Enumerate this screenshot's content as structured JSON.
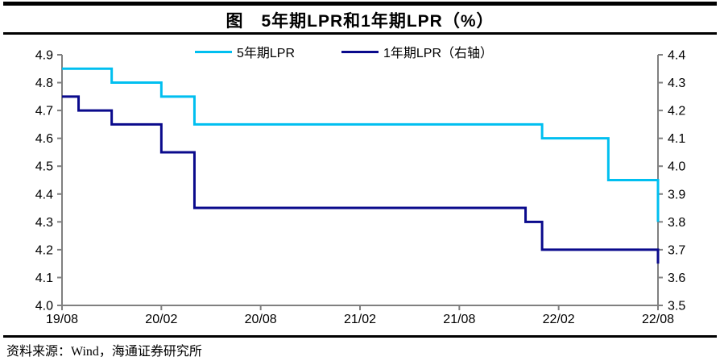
{
  "page": {
    "title": "图　5年期LPR和1年期LPR（%）"
  },
  "legend": {
    "items": [
      {
        "label": "5年期LPR",
        "color": "#00BFF0"
      },
      {
        "label": "1年期LPR（右轴）",
        "color": "#0A0A8C"
      }
    ]
  },
  "footer": {
    "text": "资料来源：Wind，海通证券研究所"
  },
  "colors": {
    "cyan_series": "#00BFF0",
    "navy_series": "#0A0A8C",
    "axis": "#808080",
    "label_text": "#000000",
    "rule": "#000000"
  },
  "chart_data": {
    "type": "line",
    "step": "after",
    "title": "5年期LPR和1年期LPR（%）",
    "grid": false,
    "legend_position": "top-center",
    "x_monthly": [
      "19/08",
      "19/09",
      "19/10",
      "19/11",
      "19/12",
      "20/01",
      "20/02",
      "20/03",
      "20/04",
      "20/05",
      "20/06",
      "20/07",
      "20/08",
      "20/09",
      "20/10",
      "20/11",
      "20/12",
      "21/01",
      "21/02",
      "21/03",
      "21/04",
      "21/05",
      "21/06",
      "21/07",
      "21/08",
      "21/09",
      "21/10",
      "21/11",
      "21/12",
      "22/01",
      "22/02",
      "22/03",
      "22/04",
      "22/05",
      "22/06",
      "22/07",
      "22/08"
    ],
    "x_axis_tick_labels": [
      "19/08",
      "20/02",
      "20/08",
      "21/02",
      "21/08",
      "22/02",
      "22/08"
    ],
    "left_axis": {
      "min": 4.0,
      "max": 4.9,
      "step": 0.1,
      "tick_labels": [
        "4.9",
        "4.8",
        "4.7",
        "4.6",
        "4.5",
        "4.4",
        "4.3",
        "4.2",
        "4.1",
        "4.0"
      ]
    },
    "right_axis": {
      "min": 3.5,
      "max": 4.4,
      "step": 0.1,
      "tick_labels": [
        "4.4",
        "4.3",
        "4.2",
        "4.1",
        "4.0",
        "3.9",
        "3.8",
        "3.7",
        "3.6",
        "3.5"
      ]
    },
    "series": [
      {
        "name": "5年期LPR",
        "axis": "left",
        "color": "#00BFF0",
        "values": [
          4.85,
          4.85,
          4.85,
          4.8,
          4.8,
          4.8,
          4.75,
          4.75,
          4.65,
          4.65,
          4.65,
          4.65,
          4.65,
          4.65,
          4.65,
          4.65,
          4.65,
          4.65,
          4.65,
          4.65,
          4.65,
          4.65,
          4.65,
          4.65,
          4.65,
          4.65,
          4.65,
          4.65,
          4.65,
          4.6,
          4.6,
          4.6,
          4.6,
          4.45,
          4.45,
          4.45,
          4.3
        ]
      },
      {
        "name": "1年期LPR（右轴）",
        "axis": "right",
        "color": "#0A0A8C",
        "values": [
          4.25,
          4.2,
          4.2,
          4.15,
          4.15,
          4.15,
          4.05,
          4.05,
          3.85,
          3.85,
          3.85,
          3.85,
          3.85,
          3.85,
          3.85,
          3.85,
          3.85,
          3.85,
          3.85,
          3.85,
          3.85,
          3.85,
          3.85,
          3.85,
          3.85,
          3.85,
          3.85,
          3.85,
          3.8,
          3.7,
          3.7,
          3.7,
          3.7,
          3.7,
          3.7,
          3.7,
          3.65
        ]
      }
    ]
  }
}
